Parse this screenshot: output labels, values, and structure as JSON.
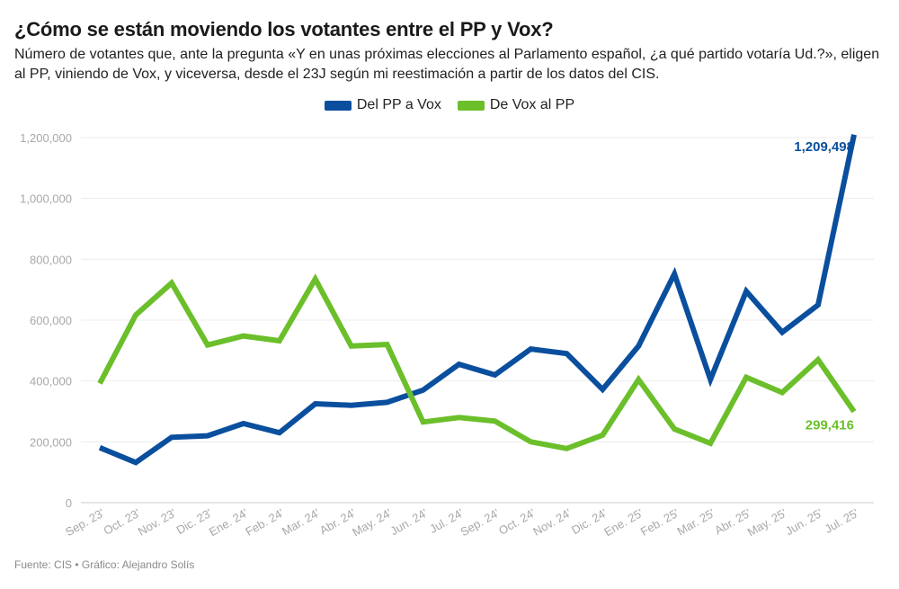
{
  "title": "¿Cómo se están moviendo los votantes entre el PP y Vox?",
  "subtitle": "Número de votantes que, ante la pregunta «Y en unas próximas elecciones al Parlamento español, ¿a qué partido votaría Ud.?», eligen al PP, viniendo de Vox, y viceversa, desde el 23J según mi reestimación a partir de los datos del CIS.",
  "footer": "Fuente: CIS • Gráfico: Alejandro Solís",
  "chart_data": {
    "type": "line",
    "categories": [
      "Sep. 23'",
      "Oct. 23'",
      "Nov. 23'",
      "Dic. 23'",
      "Ene. 24'",
      "Feb. 24'",
      "Mar. 24'",
      "Abr. 24'",
      "May. 24'",
      "Jun. 24'",
      "Jul. 24'",
      "Sep. 24'",
      "Oct. 24'",
      "Nov. 24'",
      "Dic. 24'",
      "Ene. 25'",
      "Feb. 25'",
      "Mar. 25'",
      "Abr. 25'",
      "May. 25'",
      "Jun. 25'",
      "Jul. 25'"
    ],
    "series": [
      {
        "name": "Del PP a Vox",
        "color": "#0a4f9e",
        "values": [
          181000,
          132000,
          215000,
          220000,
          260000,
          230000,
          325000,
          320000,
          330000,
          370000,
          455000,
          420000,
          505000,
          490000,
          372000,
          515000,
          752000,
          405000,
          695000,
          560000,
          650000,
          1209498
        ],
        "end_label": "1,209,498"
      },
      {
        "name": "De Vox al PP",
        "color": "#6bbf2a",
        "values": [
          392000,
          617000,
          722000,
          518000,
          548000,
          532000,
          735000,
          515000,
          520000,
          265000,
          280000,
          268000,
          200000,
          178000,
          222000,
          405000,
          242000,
          195000,
          412000,
          362000,
          470000,
          299416
        ],
        "end_label": "299,416"
      }
    ],
    "y_ticks": [
      0,
      200000,
      400000,
      600000,
      800000,
      1000000,
      1200000
    ],
    "y_tick_labels": [
      "0",
      "200,000",
      "400,000",
      "600,000",
      "800,000",
      "1,000,000",
      "1,200,000"
    ],
    "ylim": [
      0,
      1200000
    ],
    "grid": true,
    "legend_position": "top-center",
    "xlabel": "",
    "ylabel": ""
  }
}
